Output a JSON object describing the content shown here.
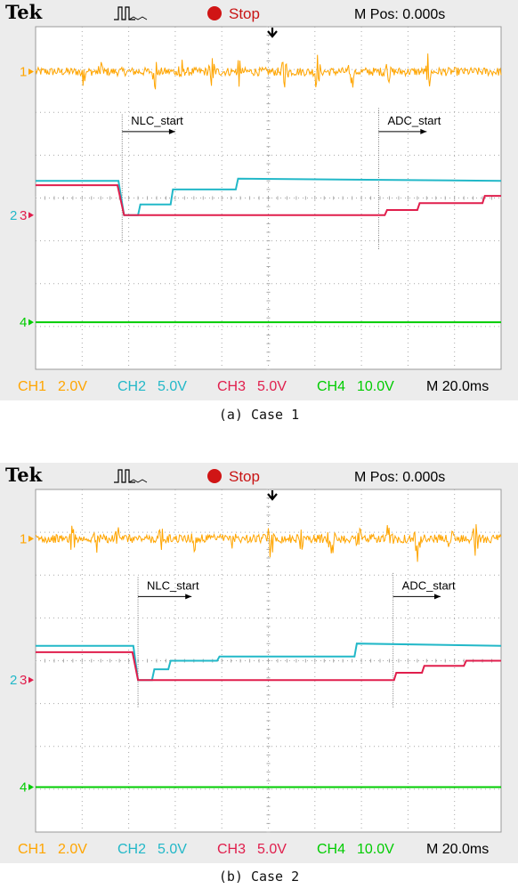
{
  "chart_data": [
    {
      "type": "line",
      "caption": "(a) Case 1",
      "header": {
        "brand": "Tek",
        "status": "Stop",
        "mpos": "M Pos: 0.000s"
      },
      "footer": {
        "ch1": "CH1",
        "ch1_scale": "2.0V",
        "ch2": "CH2",
        "ch2_scale": "5.0V",
        "ch3": "CH3",
        "ch3_scale": "5.0V",
        "ch4": "CH4",
        "ch4_scale": "10.0V",
        "timebase": "M 20.0ms"
      },
      "grid": {
        "x_divisions": 10,
        "y_divisions": 8,
        "visible": true
      },
      "xlim": [
        0,
        10
      ],
      "ylim": [
        0,
        8
      ],
      "markers": [
        {
          "label": "1",
          "y": 6.95,
          "color": "#ffa500"
        },
        {
          "label": "2 3",
          "y": 3.6,
          "color": "#e01e4c"
        },
        {
          "label": "4",
          "y": 1.1,
          "color": "#00cc00"
        }
      ],
      "annotations": [
        {
          "text": "NLC_start",
          "x": 1.86,
          "y": 5.55,
          "arrow_end": 3.0,
          "line_y_top": 5.95,
          "line_y_bottom": 2.95
        },
        {
          "text": "ADC_start",
          "x": 7.37,
          "y": 5.55,
          "arrow_end": 8.4,
          "line_y_top": 6.1,
          "line_y_bottom": 2.8
        }
      ],
      "series": [
        {
          "name": "CH1",
          "color": "#ffa500",
          "base": 6.95,
          "noise": 0.1,
          "spikes": [
            1.02,
            1.4,
            2.58,
            3.1,
            3.78,
            4.35,
            5.35,
            6.05,
            6.8,
            7.55,
            8.45
          ],
          "x": [
            0,
            10
          ],
          "y": [
            6.95,
            6.95
          ]
        },
        {
          "name": "CH2",
          "color": "#22b8c8",
          "x": [
            0,
            1.78,
            1.9,
            2.2,
            2.25,
            2.9,
            2.95,
            4.3,
            4.35,
            10
          ],
          "y": [
            4.4,
            4.4,
            3.6,
            3.6,
            3.85,
            3.85,
            4.2,
            4.2,
            4.45,
            4.4
          ]
        },
        {
          "name": "CH3",
          "color": "#e01e4c",
          "x": [
            0,
            1.76,
            1.9,
            7.5,
            7.55,
            8.2,
            8.25,
            9.6,
            9.65,
            10
          ],
          "y": [
            4.3,
            4.3,
            3.6,
            3.6,
            3.72,
            3.72,
            3.88,
            3.88,
            4.05,
            4.05
          ]
        },
        {
          "name": "CH4",
          "color": "#00cc00",
          "x": [
            0,
            10
          ],
          "y": [
            1.1,
            1.1
          ]
        }
      ]
    },
    {
      "type": "line",
      "caption": "(b) Case 2",
      "header": {
        "brand": "Tek",
        "status": "Stop",
        "mpos": "M Pos: 0.000s"
      },
      "footer": {
        "ch1": "CH1",
        "ch1_scale": "2.0V",
        "ch2": "CH2",
        "ch2_scale": "5.0V",
        "ch3": "CH3",
        "ch3_scale": "5.0V",
        "ch4": "CH4",
        "ch4_scale": "10.0V",
        "timebase": "M 20.0ms"
      },
      "grid": {
        "x_divisions": 10,
        "y_divisions": 8,
        "visible": true
      },
      "xlim": [
        0,
        10
      ],
      "ylim": [
        0,
        8
      ],
      "markers": [
        {
          "label": "1",
          "y": 6.85,
          "color": "#ffa500"
        },
        {
          "label": "2 3",
          "y": 3.55,
          "color": "#e01e4c"
        },
        {
          "label": "4",
          "y": 1.05,
          "color": "#00cc00"
        }
      ],
      "annotations": [
        {
          "text": "NLC_start",
          "x": 2.2,
          "y": 5.5,
          "arrow_end": 3.35,
          "line_y_top": 5.95,
          "line_y_bottom": 2.9
        },
        {
          "text": "ADC_start",
          "x": 7.68,
          "y": 5.5,
          "arrow_end": 8.7,
          "line_y_top": 6.05,
          "line_y_bottom": 2.9
        }
      ],
      "series": [
        {
          "name": "CH1",
          "color": "#ffa500",
          "base": 6.85,
          "noise": 0.1,
          "spikes": [
            0.8,
            1.3,
            1.75,
            2.7,
            3.4,
            4.25,
            5.05,
            5.7,
            6.35,
            6.95,
            7.6,
            8.2,
            8.9,
            9.45
          ],
          "x": [
            0,
            10
          ],
          "y": [
            6.85,
            6.85
          ]
        },
        {
          "name": "CH2",
          "color": "#22b8c8",
          "x": [
            0,
            2.1,
            2.2,
            2.5,
            2.55,
            2.85,
            2.9,
            3.9,
            3.95,
            6.85,
            6.9,
            10
          ],
          "y": [
            4.35,
            4.35,
            3.55,
            3.55,
            3.8,
            3.8,
            4.0,
            4.0,
            4.1,
            4.1,
            4.4,
            4.35
          ]
        },
        {
          "name": "CH3",
          "color": "#e01e4c",
          "x": [
            0,
            2.08,
            2.2,
            7.7,
            7.75,
            8.3,
            8.35,
            9.2,
            9.25,
            10
          ],
          "y": [
            4.2,
            4.2,
            3.55,
            3.55,
            3.72,
            3.72,
            3.88,
            3.88,
            4.0,
            4.0
          ]
        },
        {
          "name": "CH4",
          "color": "#00cc00",
          "x": [
            0,
            10
          ],
          "y": [
            1.05,
            1.05
          ]
        }
      ]
    }
  ]
}
